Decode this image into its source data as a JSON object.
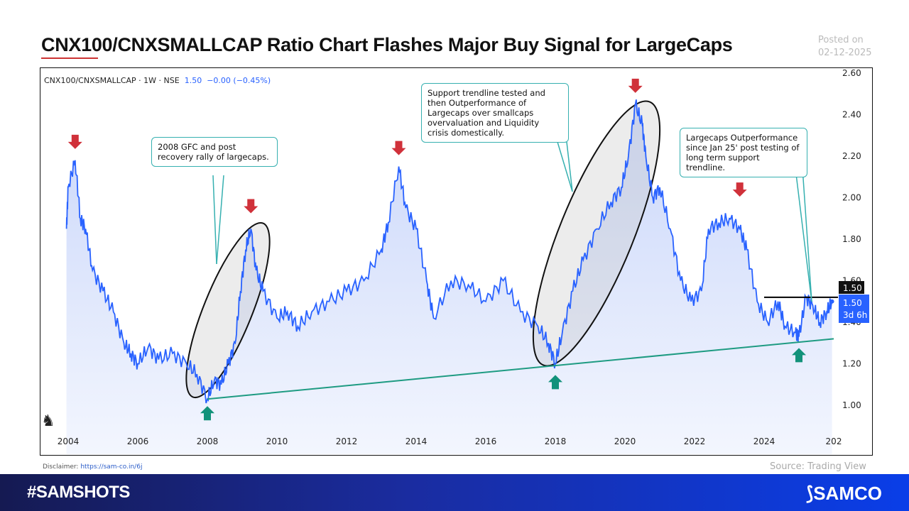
{
  "header": {
    "title": "CNX100/CNXSMALLCAP Ratio Chart Flashes Major Buy Signal for LargeCaps",
    "posted_label": "Posted on",
    "posted_date": "02-12-2025"
  },
  "legend": {
    "symbol": "CNX100/CNXSMALLCAP · 1W · NSE",
    "price": "1.50",
    "change": "−0.00 (−0.45%)"
  },
  "price_tags": {
    "last": "1.50",
    "current": "1.50",
    "countdown": "3d 6h"
  },
  "callouts": [
    "2008 GFC and post recovery rally of largecaps.",
    "Support trendline tested and then Outperformance of Largecaps over smallcaps overvaluation and Liquidity crisis domestically.",
    "Largecaps Outperformance since Jan 25' post testing of long term support trendline."
  ],
  "disclaimer": {
    "label": "Disclaimer:",
    "link": "https://sam-co.in/6j"
  },
  "source": "Source: Trading View",
  "footer": {
    "hashtag": "#SAMSHOTS",
    "logo": "SAMCO"
  },
  "colors": {
    "line": "#2962ff",
    "fill": "#dfe6fb",
    "trendline": "#1e9b82",
    "sell_arrow": "#d0313a",
    "buy_arrow": "#12927a",
    "callout_border": "#36b0b0"
  },
  "chart_data": {
    "type": "area",
    "xlabel": "",
    "ylabel": "",
    "xlim": [
      2003.9,
      2026.1
    ],
    "ylim": [
      0.9,
      2.62
    ],
    "xticks": [
      "2004",
      "2006",
      "2008",
      "2010",
      "2012",
      "2014",
      "2016",
      "2018",
      "2020",
      "2022",
      "2024",
      "202"
    ],
    "yticks": [
      "2.60",
      "2.40",
      "2.20",
      "2.00",
      "1.80",
      "1.60",
      "1.40",
      "1.20",
      "1.00"
    ],
    "series": [
      {
        "x": [
          2003.95,
          2004.0,
          2004.2,
          2004.35,
          2004.5,
          2004.7,
          2005.0,
          2005.3,
          2005.6,
          2005.8,
          2006.0,
          2006.3,
          2006.6,
          2007.0,
          2007.4,
          2007.7,
          2008.0,
          2008.2,
          2008.4,
          2008.6,
          2008.8,
          2008.95,
          2009.1,
          2009.25,
          2009.4,
          2009.6,
          2010.0,
          2010.3,
          2010.6,
          2011.0,
          2011.5,
          2012.0,
          2012.5,
          2013.0,
          2013.2,
          2013.5,
          2013.7,
          2014.0,
          2014.3,
          2014.5,
          2015.0,
          2015.5,
          2016.0,
          2016.5,
          2017.0,
          2017.5,
          2017.8,
          2018.0,
          2018.2,
          2018.5,
          2018.8,
          2019.2,
          2019.6,
          2019.9,
          2020.1,
          2020.3,
          2020.5,
          2020.6,
          2020.8,
          2021.0,
          2021.3,
          2021.6,
          2021.9,
          2022.2,
          2022.4,
          2022.7,
          2023.0,
          2023.3,
          2023.5,
          2023.8,
          2024.1,
          2024.4,
          2024.6,
          2024.9,
          2025.0,
          2025.2,
          2025.4,
          2025.6,
          2025.8,
          2025.95
        ],
        "y": [
          1.85,
          2.05,
          2.18,
          1.9,
          1.85,
          1.65,
          1.55,
          1.45,
          1.3,
          1.25,
          1.2,
          1.28,
          1.22,
          1.25,
          1.2,
          1.15,
          1.03,
          1.12,
          1.1,
          1.2,
          1.3,
          1.55,
          1.75,
          1.85,
          1.65,
          1.55,
          1.42,
          1.45,
          1.38,
          1.45,
          1.5,
          1.55,
          1.6,
          1.75,
          1.88,
          2.15,
          1.95,
          1.85,
          1.6,
          1.42,
          1.6,
          1.58,
          1.5,
          1.6,
          1.45,
          1.38,
          1.3,
          1.2,
          1.35,
          1.55,
          1.7,
          1.85,
          1.98,
          2.05,
          2.2,
          2.45,
          2.35,
          2.2,
          2.0,
          2.05,
          1.85,
          1.6,
          1.5,
          1.55,
          1.85,
          1.88,
          1.9,
          1.85,
          1.75,
          1.5,
          1.4,
          1.5,
          1.38,
          1.35,
          1.33,
          1.52,
          1.48,
          1.4,
          1.45,
          1.5
        ]
      }
    ],
    "trendline": {
      "from": [
        2008.0,
        1.03
      ],
      "to": [
        2026.0,
        1.32
      ]
    },
    "resistance": {
      "value": 1.52,
      "from": 2024.0,
      "to": 2026.1
    },
    "sell_signals": [
      [
        2004.2,
        2.18
      ],
      [
        2009.25,
        1.87
      ],
      [
        2013.5,
        2.15
      ],
      [
        2020.3,
        2.45
      ],
      [
        2023.3,
        1.95
      ]
    ],
    "buy_signals": [
      [
        2008.0,
        1.03
      ],
      [
        2018.0,
        1.18
      ],
      [
        2025.0,
        1.31
      ]
    ]
  }
}
